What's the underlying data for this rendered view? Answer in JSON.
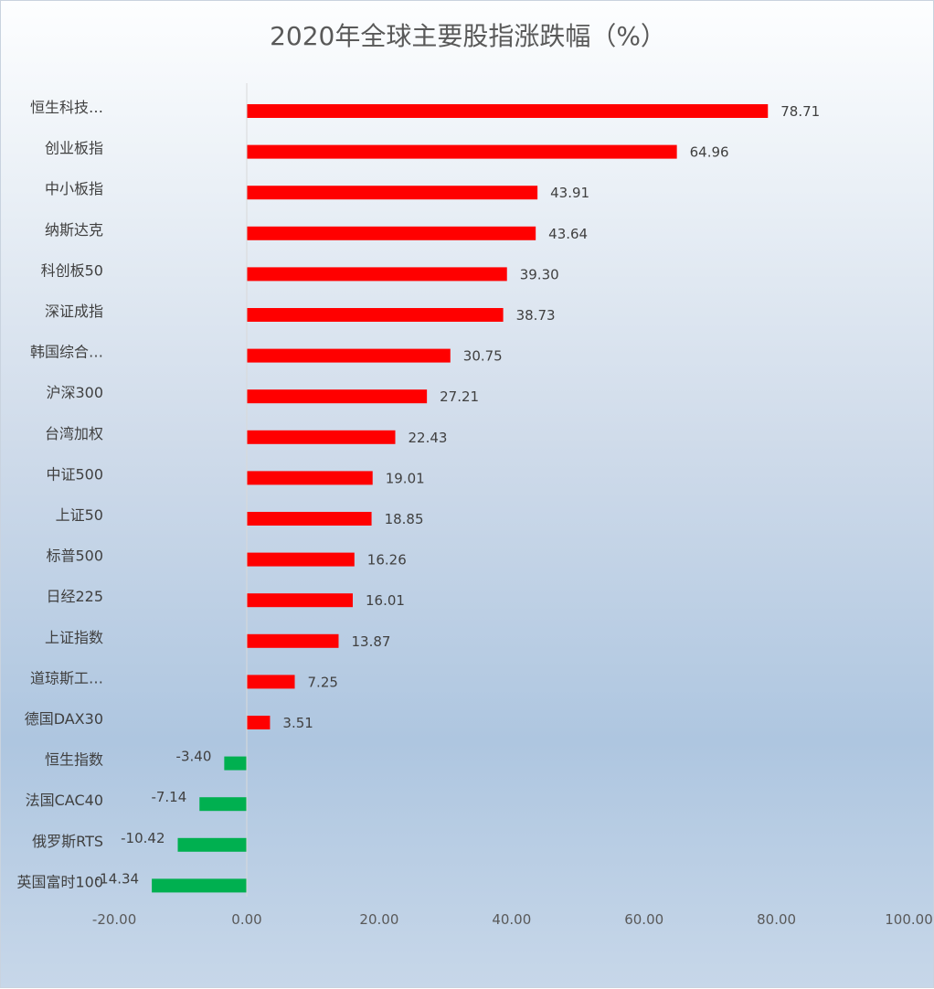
{
  "chart_data": {
    "type": "bar",
    "orientation": "horizontal",
    "title": "2020年全球主要股指涨跌幅（%）",
    "xlabel": "",
    "ylabel": "",
    "xlim": [
      -20,
      100
    ],
    "xticks": [
      "-20.00",
      "0.00",
      "20.00",
      "40.00",
      "60.00",
      "80.00",
      "100.00"
    ],
    "grid": false,
    "legend": "none",
    "colors": {
      "positive": "#ff0000",
      "negative": "#00b050",
      "axis": "#d9d9d9"
    },
    "categories": [
      "恒生科技…",
      "创业板指",
      "中小板指",
      "纳斯达克",
      "科创板50",
      "深证成指",
      "韩国综合…",
      "沪深300",
      "台湾加权",
      "中证500",
      "上证50",
      "标普500",
      "日经225",
      "上证指数",
      "道琼斯工…",
      "德国DAX30",
      "恒生指数",
      "法国CAC40",
      "俄罗斯RTS",
      "英国富时100"
    ],
    "values": [
      78.71,
      64.96,
      43.91,
      43.64,
      39.3,
      38.73,
      30.75,
      27.21,
      22.43,
      19.01,
      18.85,
      16.26,
      16.01,
      13.87,
      7.25,
      3.51,
      -3.4,
      -7.14,
      -10.42,
      -14.34
    ],
    "value_labels": [
      "78.71",
      "64.96",
      "43.91",
      "43.64",
      "39.30",
      "38.73",
      "30.75",
      "27.21",
      "22.43",
      "19.01",
      "18.85",
      "16.26",
      "16.01",
      "13.87",
      "7.25",
      "3.51",
      "-3.40",
      "-7.14",
      "-10.42",
      "-14.34"
    ]
  }
}
